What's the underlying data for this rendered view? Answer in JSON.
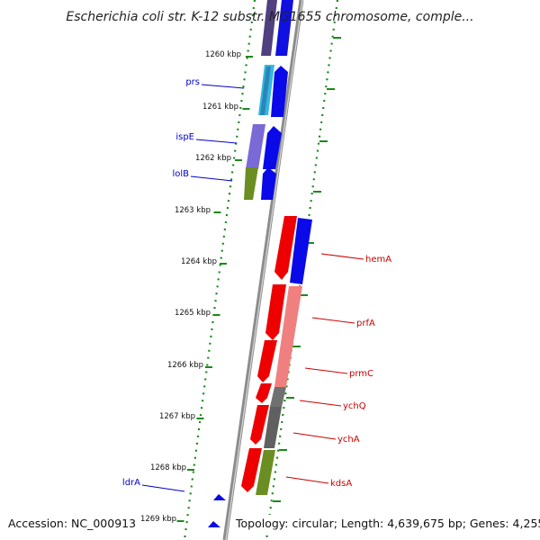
{
  "title": "Escherichia coli str. K-12 substr. MG1655 chromosome, comple...",
  "footer": {
    "accession": "Accession: NC_000913",
    "summary": "Topology: circular; Length: 4,639,675 bp; Genes: 4,255"
  },
  "colors": {
    "backbone": "#8c8c8c",
    "tick": "#1a8a1a",
    "left_label": "#0000cc",
    "right_label": "#cc0000"
  },
  "ticks": [
    {
      "label": "1260 kbp"
    },
    {
      "label": "1261 kbp"
    },
    {
      "label": "1262 kbp"
    },
    {
      "label": "1263 kbp"
    },
    {
      "label": "1264 kbp"
    },
    {
      "label": "1265 kbp"
    },
    {
      "label": "1266 kbp"
    },
    {
      "label": "1267 kbp"
    },
    {
      "label": "1268 kbp"
    },
    {
      "label": "1269 kbp"
    }
  ],
  "left_genes": [
    {
      "name": "prs"
    },
    {
      "name": "ispE"
    },
    {
      "name": "lolB"
    },
    {
      "name": "ldrA"
    }
  ],
  "right_genes": [
    {
      "name": "hemA"
    },
    {
      "name": "prfA"
    },
    {
      "name": "prmC"
    },
    {
      "name": "ychQ"
    },
    {
      "name": "ychA"
    },
    {
      "name": "kdsA"
    }
  ]
}
